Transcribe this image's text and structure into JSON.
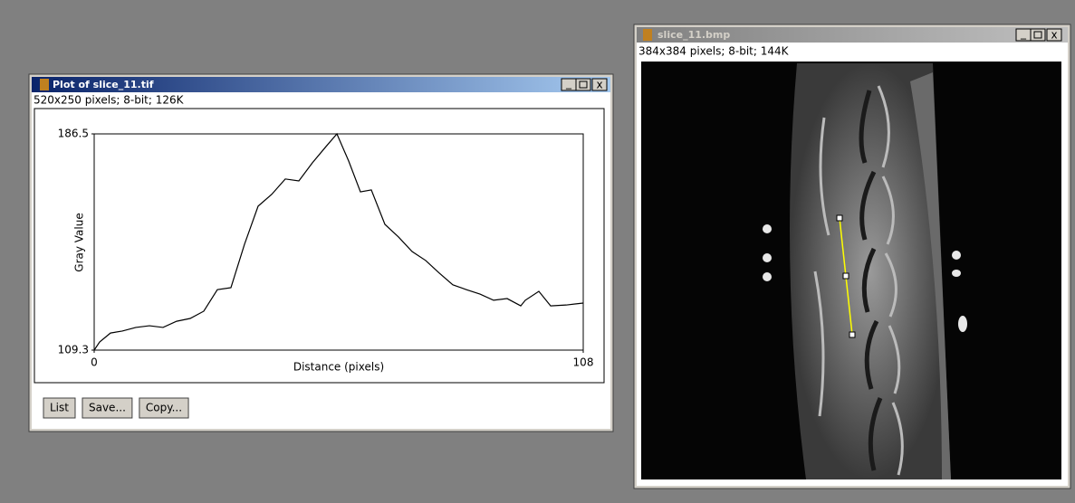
{
  "plot_window": {
    "title": "Plot of slice_11.tif",
    "info": "520x250 pixels; 8-bit; 126K",
    "buttons": [
      "List",
      "Save...",
      "Copy..."
    ]
  },
  "chart_data": {
    "type": "line",
    "x_label": "Distance (pixels)",
    "y_label": "Gray Value",
    "x": [
      0,
      1.2,
      3.6,
      6.2,
      9.2,
      12.2,
      15.2,
      18.2,
      21.2,
      24.2,
      27.2,
      30.2,
      33.2,
      36.2,
      39.2,
      42.2,
      45.2,
      48.2,
      51.2,
      53.6,
      56.2,
      58.8,
      61.2,
      64.2,
      67.2,
      70.2,
      73.2,
      76.2,
      79.2,
      82.2,
      85.2,
      88.2,
      91.2,
      94.2,
      95.2,
      98.2,
      100.8,
      104.2,
      108
    ],
    "values": [
      109.3,
      112.2,
      115.4,
      116.1,
      117.4,
      118.0,
      117.4,
      119.6,
      120.6,
      123.2,
      130.9,
      131.6,
      147.1,
      160.7,
      164.9,
      170.4,
      169.7,
      176.2,
      182.0,
      186.5,
      176.8,
      165.8,
      166.5,
      154.2,
      149.7,
      144.5,
      141.3,
      136.8,
      132.6,
      130.9,
      129.3,
      127.1,
      127.7,
      125.1,
      127.1,
      130.3,
      125.1,
      125.4,
      126.1
    ],
    "color": "#000000",
    "xlim": [
      0,
      108
    ],
    "ylim": [
      109.3,
      186.5
    ],
    "xticks": [
      0,
      108
    ],
    "yticks": [
      109.3,
      186.5
    ],
    "grid": false
  },
  "image_window": {
    "title": "slice_11.bmp",
    "info": "384x384 pixels; 8-bit; 144K"
  }
}
